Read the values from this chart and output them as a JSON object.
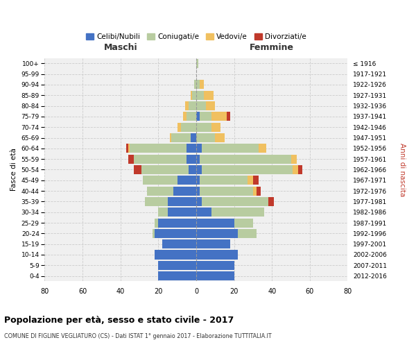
{
  "age_groups": [
    "0-4",
    "5-9",
    "10-14",
    "15-19",
    "20-24",
    "25-29",
    "30-34",
    "35-39",
    "40-44",
    "45-49",
    "50-54",
    "55-59",
    "60-64",
    "65-69",
    "70-74",
    "75-79",
    "80-84",
    "85-89",
    "90-94",
    "95-99",
    "100+"
  ],
  "birth_years": [
    "2012-2016",
    "2007-2011",
    "2002-2006",
    "1997-2001",
    "1992-1996",
    "1987-1991",
    "1982-1986",
    "1977-1981",
    "1972-1976",
    "1967-1971",
    "1962-1966",
    "1957-1961",
    "1952-1956",
    "1947-1951",
    "1942-1946",
    "1937-1941",
    "1932-1936",
    "1927-1931",
    "1922-1926",
    "1917-1921",
    "≤ 1916"
  ],
  "male": {
    "celibe": [
      20,
      20,
      22,
      18,
      22,
      20,
      15,
      15,
      12,
      10,
      4,
      5,
      5,
      3,
      0,
      0,
      0,
      0,
      0,
      0,
      0
    ],
    "coniugato": [
      0,
      0,
      0,
      0,
      1,
      2,
      5,
      12,
      14,
      18,
      25,
      28,
      30,
      10,
      8,
      5,
      4,
      2,
      1,
      0,
      0
    ],
    "vedovo": [
      0,
      0,
      0,
      0,
      0,
      0,
      0,
      0,
      0,
      0,
      0,
      0,
      1,
      1,
      2,
      2,
      2,
      1,
      0,
      0,
      0
    ],
    "divorziato": [
      0,
      0,
      0,
      0,
      0,
      0,
      0,
      0,
      0,
      0,
      4,
      3,
      1,
      0,
      0,
      0,
      0,
      0,
      0,
      0,
      0
    ]
  },
  "female": {
    "nubile": [
      20,
      20,
      22,
      18,
      22,
      20,
      8,
      3,
      2,
      2,
      3,
      2,
      3,
      0,
      0,
      2,
      0,
      0,
      0,
      0,
      0
    ],
    "coniugata": [
      0,
      0,
      0,
      0,
      10,
      10,
      28,
      35,
      28,
      25,
      48,
      48,
      30,
      10,
      8,
      6,
      5,
      4,
      2,
      0,
      1
    ],
    "vedova": [
      0,
      0,
      0,
      0,
      0,
      0,
      0,
      0,
      2,
      3,
      3,
      3,
      4,
      5,
      5,
      8,
      5,
      5,
      2,
      0,
      0
    ],
    "divorziata": [
      0,
      0,
      0,
      0,
      0,
      0,
      0,
      3,
      2,
      3,
      2,
      0,
      0,
      0,
      0,
      2,
      0,
      0,
      0,
      0,
      0
    ]
  },
  "colors": {
    "celibe": "#4472c4",
    "coniugato": "#b8cca0",
    "vedovo": "#f0c060",
    "divorziato": "#c0392b"
  },
  "xlim": 80,
  "title": "Popolazione per età, sesso e stato civile - 2017",
  "subtitle": "COMUNE DI FIGLINE VEGLIATURO (CS) - Dati ISTAT 1° gennaio 2017 - Elaborazione TUTTITALIA.IT",
  "label_maschi": "Maschi",
  "label_femmine": "Femmine",
  "ylabel_left": "Fasce di età",
  "ylabel_right": "Anni di nascita",
  "bg_color": "#f0f0f0",
  "grid_color": "#cccccc",
  "legend_labels": [
    "Celibi/Nubili",
    "Coniugati/e",
    "Vedovi/e",
    "Divorziati/e"
  ]
}
